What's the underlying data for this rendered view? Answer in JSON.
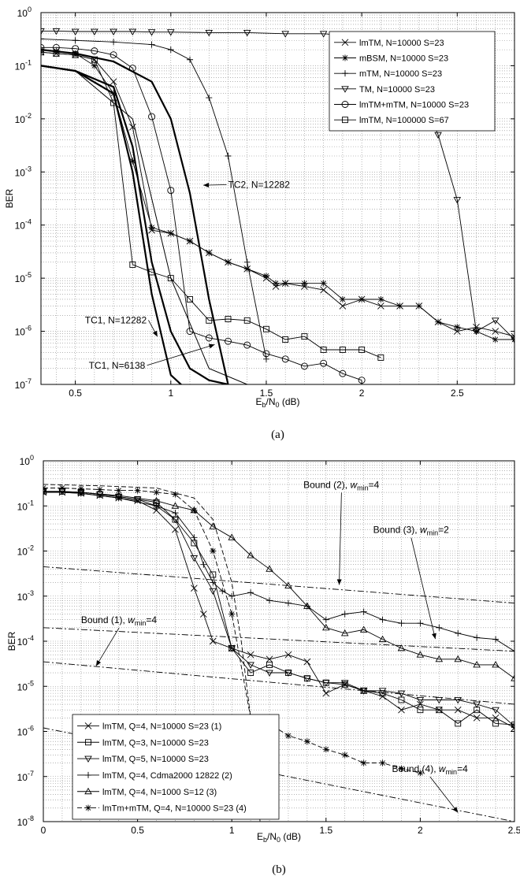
{
  "chart_data": [
    {
      "type": "line",
      "caption": "(a)",
      "ylabel": "BER",
      "xlabel_base": "E",
      "xlabel_sub1": "b",
      "xlabel_mid": "/N",
      "xlabel_sub2": "0",
      "xlabel_tail": " (dB)",
      "yscale": "log",
      "xlim": [
        0.32,
        2.8
      ],
      "ylim_exp": [
        -7,
        0
      ],
      "xticks": [
        0.5,
        1,
        1.5,
        2,
        2.5
      ],
      "xtick_labels": [
        "0.5",
        "1",
        "1.5",
        "2",
        "2.5"
      ],
      "ytick_exps": [
        0,
        -1,
        -2,
        -3,
        -4,
        -5,
        -6,
        -7
      ],
      "ytick_base": "10",
      "grid": true,
      "legend_position": "top-right",
      "series": [
        {
          "name": "lmTM, N=10000 S=23",
          "marker": "x",
          "style": "solid",
          "x": [
            0.32,
            0.4,
            0.5,
            0.6,
            0.7,
            0.8,
            0.9,
            1.0,
            1.1,
            1.2,
            1.3,
            1.4,
            1.5,
            1.55,
            1.6,
            1.7,
            1.8,
            1.9,
            2.0,
            2.1,
            2.2,
            2.3,
            2.4,
            2.5,
            2.6,
            2.7,
            2.8
          ],
          "y": [
            0.18,
            0.17,
            0.16,
            0.13,
            0.05,
            0.007,
            8e-05,
            7e-05,
            5e-05,
            3e-05,
            2e-05,
            1.5e-05,
            1e-05,
            7e-06,
            8e-06,
            7e-06,
            6e-06,
            3e-06,
            4e-06,
            3e-06,
            3e-06,
            3e-06,
            1.5e-06,
            1e-06,
            1.2e-06,
            1e-06,
            8e-07
          ]
        },
        {
          "name": "mBSM, N=10000 S=23",
          "marker": "asterisk",
          "style": "solid",
          "x": [
            0.32,
            0.4,
            0.5,
            0.6,
            0.7,
            0.8,
            0.9,
            1.0,
            1.1,
            1.2,
            1.3,
            1.4,
            1.5,
            1.55,
            1.6,
            1.7,
            1.8,
            1.9,
            2.0,
            2.1,
            2.2,
            2.3,
            2.4,
            2.5,
            2.6,
            2.7,
            2.8
          ],
          "y": [
            0.2,
            0.19,
            0.17,
            0.1,
            0.03,
            0.0016,
            9e-05,
            7e-05,
            5e-05,
            3e-05,
            2e-05,
            1.5e-05,
            1.1e-05,
            8e-06,
            8e-06,
            8e-06,
            8e-06,
            4e-06,
            4e-06,
            4e-06,
            3e-06,
            3e-06,
            1.5e-06,
            1.2e-06,
            1e-06,
            7e-07,
            7e-07
          ]
        },
        {
          "name": "mTM, N=10000 S=23",
          "marker": "plus",
          "style": "solid",
          "x": [
            0.32,
            0.5,
            0.7,
            0.9,
            1.0,
            1.1,
            1.2,
            1.3,
            1.4,
            1.5
          ],
          "y": [
            0.32,
            0.3,
            0.28,
            0.25,
            0.2,
            0.13,
            0.025,
            0.002,
            2e-05,
            3e-07
          ]
        },
        {
          "name": "TM, N=10000 S=23",
          "marker": "triangle-down",
          "style": "solid",
          "x": [
            0.32,
            0.4,
            0.5,
            0.6,
            0.7,
            0.8,
            0.9,
            1.0,
            1.2,
            1.4,
            1.6,
            1.8,
            2.0,
            2.2,
            2.4,
            2.5,
            2.6,
            2.7,
            2.8
          ],
          "y": [
            0.45,
            0.45,
            0.44,
            0.44,
            0.44,
            0.44,
            0.43,
            0.43,
            0.42,
            0.42,
            0.4,
            0.4,
            0.35,
            0.2,
            0.005,
            0.0003,
            1e-06,
            1.6e-06,
            7e-07
          ]
        },
        {
          "name": "lmTM+mTM, N=10000 S=23",
          "marker": "circle",
          "style": "solid",
          "x": [
            0.32,
            0.4,
            0.5,
            0.6,
            0.7,
            0.8,
            0.9,
            1.0,
            1.1,
            1.2,
            1.3,
            1.4,
            1.5,
            1.6,
            1.7,
            1.8,
            1.9,
            2.0
          ],
          "y": [
            0.22,
            0.22,
            0.21,
            0.19,
            0.16,
            0.09,
            0.011,
            0.00045,
            1e-06,
            7.5e-07,
            6.5e-07,
            5.5e-07,
            3.8e-07,
            3e-07,
            2.2e-07,
            2.5e-07,
            1.6e-07,
            1.2e-07
          ]
        },
        {
          "name": "lmTM, N=100000 S=67",
          "marker": "square",
          "style": "solid",
          "x": [
            0.32,
            0.4,
            0.5,
            0.6,
            0.7,
            0.8,
            0.9,
            1.0,
            1.1,
            1.2,
            1.3,
            1.4,
            1.5,
            1.6,
            1.7,
            1.8,
            1.9,
            2.0,
            2.1
          ],
          "y": [
            0.18,
            0.17,
            0.16,
            0.13,
            0.02,
            1.8e-05,
            1.3e-05,
            1e-05,
            4e-06,
            1.6e-06,
            1.7e-06,
            1.6e-06,
            1.1e-06,
            7e-07,
            8e-07,
            4.5e-07,
            4.5e-07,
            4.5e-07,
            3.2e-07
          ]
        },
        {
          "name": "",
          "marker": "none",
          "style": "thick",
          "x": [
            0.32,
            0.5,
            0.7,
            0.8,
            0.9,
            1.0,
            1.1,
            1.3
          ],
          "y": [
            0.1,
            0.08,
            0.03,
            0.001,
            5e-06,
            1.5e-07,
            7e-08,
            7e-08
          ]
        },
        {
          "name": "",
          "marker": "none",
          "style": "thick",
          "x": [
            0.32,
            0.5,
            0.7,
            0.8,
            0.9,
            1.0,
            1.1,
            1.2,
            1.3
          ],
          "y": [
            0.1,
            0.08,
            0.04,
            0.003,
            2e-05,
            1e-06,
            2e-07,
            1.2e-07,
            1e-07
          ]
        },
        {
          "name": "",
          "marker": "none",
          "style": "thick",
          "x": [
            0.32,
            0.5,
            0.7,
            0.9,
            1.0,
            1.1,
            1.2,
            1.3
          ],
          "y": [
            0.2,
            0.17,
            0.12,
            0.05,
            0.01,
            0.0004,
            4e-06,
            1e-07
          ]
        },
        {
          "name": "",
          "marker": "none",
          "style": "thin",
          "x": [
            0.32,
            0.5,
            0.8,
            1.0,
            1.2,
            1.4,
            1.5
          ],
          "y": [
            0.1,
            0.08,
            0.01,
            1e-05,
            2e-07,
            1e-07,
            1e-07
          ]
        }
      ],
      "annotations": [
        {
          "text": "TC2, N=12282",
          "x": 1.3,
          "y_exp": -3.3,
          "arrow_x": 1.17,
          "arrow_y_exp": -3.25
        },
        {
          "text": "TC1, N=12282",
          "x": 0.55,
          "y_exp": -5.85,
          "arrow_x": 0.93,
          "arrow_y_exp": -6.1
        },
        {
          "text": "TC1, N=6138",
          "x": 0.57,
          "y_exp": -6.7,
          "arrow_x": 1.23,
          "arrow_y_exp": -6.25
        }
      ]
    },
    {
      "type": "line",
      "caption": "(b)",
      "ylabel": "BER",
      "xlabel_base": "E",
      "xlabel_sub1": "b",
      "xlabel_mid": "/N",
      "xlabel_sub2": "0",
      "xlabel_tail": " (dB)",
      "yscale": "log",
      "xlim": [
        0,
        2.5
      ],
      "ylim_exp": [
        -8,
        0
      ],
      "xticks": [
        0,
        0.5,
        1,
        1.5,
        2,
        2.5
      ],
      "xtick_labels": [
        "0",
        "0.5",
        "1",
        "1.5",
        "2",
        "2.5"
      ],
      "ytick_exps": [
        0,
        -1,
        -2,
        -3,
        -4,
        -5,
        -6,
        -7,
        -8
      ],
      "ytick_base": "10",
      "grid": true,
      "legend_position": "bottom-left",
      "series": [
        {
          "name": "lmTM, Q=4, N=10000 S=23 (1)",
          "marker": "x",
          "style": "solid",
          "x": [
            0,
            0.1,
            0.2,
            0.3,
            0.4,
            0.5,
            0.6,
            0.7,
            0.8,
            0.85,
            0.9,
            1.0,
            1.1,
            1.2,
            1.3,
            1.4,
            1.5,
            1.6,
            1.7,
            1.8,
            1.9,
            2.0,
            2.1,
            2.2,
            2.3,
            2.4,
            2.5
          ],
          "y": [
            0.2,
            0.2,
            0.19,
            0.17,
            0.15,
            0.13,
            0.08,
            0.03,
            0.0015,
            0.0004,
            0.0001,
            7e-05,
            5e-05,
            4e-05,
            5e-05,
            3.5e-05,
            7e-06,
            1.1e-05,
            8e-06,
            6e-06,
            3e-06,
            4e-06,
            3e-06,
            3e-06,
            2e-06,
            2e-06,
            1.2e-06
          ]
        },
        {
          "name": "lmTM, Q=3, N=10000 S=23",
          "marker": "square",
          "style": "solid",
          "x": [
            0,
            0.1,
            0.2,
            0.3,
            0.4,
            0.5,
            0.6,
            0.7,
            0.8,
            0.9,
            1.0,
            1.1,
            1.2,
            1.3,
            1.4,
            1.5,
            1.6,
            1.7,
            1.8,
            1.9,
            2.0,
            2.1,
            2.2,
            2.3,
            2.4,
            2.5
          ],
          "y": [
            0.21,
            0.21,
            0.2,
            0.18,
            0.16,
            0.14,
            0.12,
            0.05,
            0.015,
            0.003,
            7e-05,
            2e-05,
            3e-05,
            2e-05,
            1.5e-05,
            1.2e-05,
            1.1e-05,
            8e-06,
            7e-06,
            5e-06,
            3e-06,
            3e-06,
            1.5e-06,
            3e-06,
            1.5e-06,
            1.4e-06
          ]
        },
        {
          "name": "lmTM, Q=5, N=10000 S=23",
          "marker": "triangle-down",
          "style": "solid",
          "x": [
            0,
            0.1,
            0.2,
            0.3,
            0.4,
            0.5,
            0.6,
            0.7,
            0.8,
            0.9,
            1.0,
            1.1,
            1.2,
            1.3,
            1.4,
            1.5,
            1.6,
            1.7,
            1.8,
            1.9,
            2.0,
            2.1,
            2.2,
            2.3,
            2.4,
            2.5
          ],
          "y": [
            0.21,
            0.21,
            0.2,
            0.18,
            0.16,
            0.14,
            0.1,
            0.05,
            0.007,
            0.0013,
            7e-05,
            3e-05,
            2e-05,
            2e-05,
            1.5e-05,
            1.2e-05,
            1.2e-05,
            8e-06,
            8e-06,
            7e-06,
            5e-06,
            5e-06,
            5e-06,
            4e-06,
            3e-06,
            1.3e-06
          ]
        },
        {
          "name": "lmTM, Q=4, Cdma2000 12822 (2)",
          "marker": "plus",
          "style": "solid",
          "x": [
            0,
            0.2,
            0.4,
            0.6,
            0.7,
            0.8,
            0.85,
            0.9,
            0.95,
            1.0,
            1.1,
            1.2,
            1.3,
            1.4,
            1.5,
            1.6,
            1.7,
            1.8,
            1.9,
            2.0,
            2.1,
            2.2,
            2.3,
            2.4,
            2.5
          ],
          "y": [
            0.21,
            0.19,
            0.15,
            0.1,
            0.07,
            0.02,
            0.005,
            0.002,
            0.0013,
            0.001,
            0.0012,
            0.0008,
            0.0007,
            0.0006,
            0.0003,
            0.0004,
            0.00045,
            0.0003,
            0.00025,
            0.00025,
            0.0002,
            0.00015,
            0.00012,
            0.00011,
            6e-05
          ]
        },
        {
          "name": "lmTM, Q=4, N=1000 S=12 (3)",
          "marker": "triangle-up",
          "style": "solid",
          "x": [
            0,
            0.2,
            0.4,
            0.6,
            0.7,
            0.8,
            0.9,
            1.0,
            1.1,
            1.2,
            1.3,
            1.4,
            1.5,
            1.6,
            1.7,
            1.8,
            1.9,
            2.0,
            2.1,
            2.2,
            2.3,
            2.4,
            2.5
          ],
          "y": [
            0.21,
            0.2,
            0.17,
            0.13,
            0.1,
            0.08,
            0.035,
            0.02,
            0.008,
            0.004,
            0.0017,
            0.0006,
            0.0002,
            0.00015,
            0.00018,
            0.00011,
            7e-05,
            5e-05,
            4e-05,
            4e-05,
            3e-05,
            3e-05,
            1.5e-05
          ]
        },
        {
          "name": "lmTm+mTM, Q=4, N=10000 S=23 (4)",
          "marker": "asterisk",
          "style": "dashed",
          "x": [
            0,
            0.1,
            0.2,
            0.3,
            0.4,
            0.5,
            0.6,
            0.7,
            0.8,
            0.9,
            1.0,
            1.1,
            1.2,
            1.3,
            1.4,
            1.5,
            1.6,
            1.7,
            1.8,
            1.9,
            2.0
          ],
          "y": [
            0.25,
            0.25,
            0.24,
            0.23,
            0.22,
            0.22,
            0.2,
            0.18,
            0.08,
            0.01,
            0.0004,
            2e-06,
            1.5e-06,
            8e-07,
            6e-07,
            4e-07,
            3e-07,
            2e-07,
            2e-07,
            1.5e-07,
            1.2e-07
          ]
        },
        {
          "name": "",
          "marker": "none",
          "style": "dashdot",
          "x": [
            0,
            2.5
          ],
          "y": [
            0.0045,
            0.0007
          ]
        },
        {
          "name": "",
          "marker": "none",
          "style": "dashdot",
          "x": [
            0,
            2.5
          ],
          "y": [
            0.0002,
            6e-05
          ]
        },
        {
          "name": "",
          "marker": "none",
          "style": "dashdot",
          "x": [
            0,
            2.5
          ],
          "y": [
            3.5e-05,
            4e-06
          ]
        },
        {
          "name": "",
          "marker": "none",
          "style": "dashdot",
          "x": [
            0,
            2.5
          ],
          "y": [
            1.2e-06,
            1e-08
          ]
        },
        {
          "name": "",
          "marker": "none",
          "style": "dashed",
          "x": [
            0,
            0.3,
            0.6,
            0.8,
            0.9,
            1.0,
            1.05,
            1.1,
            1.15
          ],
          "y": [
            0.3,
            0.28,
            0.25,
            0.15,
            0.05,
            0.002,
            0.0001,
            2e-06,
            1e-08
          ]
        }
      ],
      "annotations": [
        {
          "label": "Bound (2),",
          "sub_var": "w",
          "sub_text": "min",
          "suffix": "=4",
          "x": 1.38,
          "y_exp": -0.6,
          "arrow_x": 1.57,
          "arrow_y_exp": -2.75
        },
        {
          "label": "Bound (3),",
          "sub_var": "w",
          "sub_text": "min",
          "suffix": "=2",
          "x": 1.75,
          "y_exp": -1.6,
          "arrow_x": 2.08,
          "arrow_y_exp": -3.95
        },
        {
          "label": "Bound (1),",
          "sub_var": "w",
          "sub_text": "min",
          "suffix": "=4",
          "x": 0.2,
          "y_exp": -3.6,
          "arrow_x": 0.28,
          "arrow_y_exp": -4.55
        },
        {
          "label": "Bound (4),",
          "sub_var": "w",
          "sub_text": "min",
          "suffix": "=4",
          "x": 1.85,
          "y_exp": -6.9,
          "arrow_x": 2.2,
          "arrow_y_exp": -7.8
        }
      ]
    }
  ]
}
